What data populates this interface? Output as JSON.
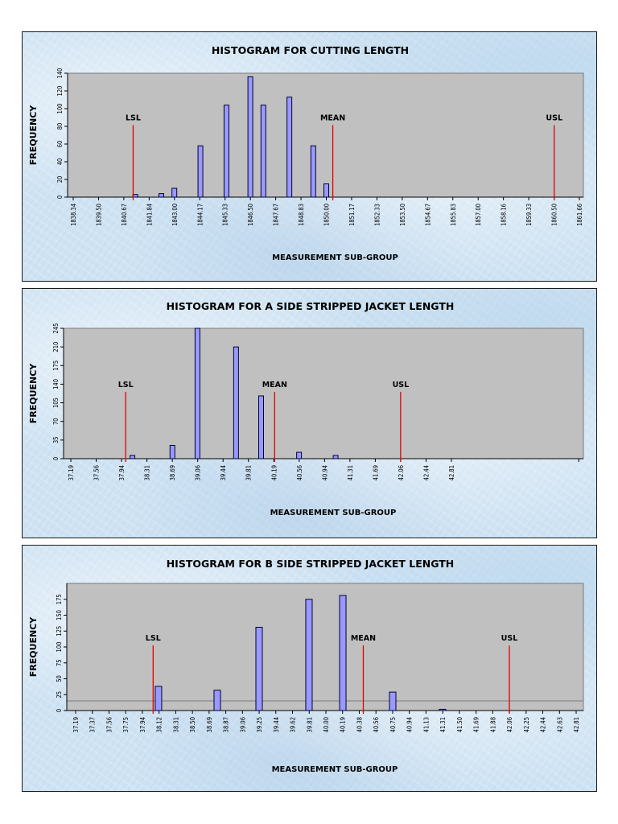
{
  "chart_data": [
    {
      "type": "bar",
      "title": "HISTOGRAM FOR CUTTING LENGTH",
      "xlabel": "MEASUREMENT SUB-GROUP",
      "ylabel": "FREQUENCY",
      "ylim": [
        0,
        140
      ],
      "yticks": [
        0,
        20,
        40,
        60,
        80,
        100,
        120,
        140
      ],
      "xlim": [
        1838.34,
        1861.66
      ],
      "x_ticks": [
        "1838.34",
        "1839.50",
        "1840.67",
        "1841.84",
        "1843.00",
        "1844.17",
        "1845.33",
        "1846.50",
        "1847.67",
        "1848.83",
        "1850.00",
        "1851.17",
        "1852.33",
        "1853.50",
        "1854.67",
        "1855.83",
        "1857.00",
        "1858.16",
        "1859.33",
        "1860.50",
        "1861.66"
      ],
      "grid": false,
      "bars": [
        {
          "x": 1841.2,
          "value": 3
        },
        {
          "x": 1842.4,
          "value": 4
        },
        {
          "x": 1843.0,
          "value": 10
        },
        {
          "x": 1844.2,
          "value": 58
        },
        {
          "x": 1845.4,
          "value": 104
        },
        {
          "x": 1846.5,
          "value": 136
        },
        {
          "x": 1847.1,
          "value": 104
        },
        {
          "x": 1848.3,
          "value": 113
        },
        {
          "x": 1849.4,
          "value": 58
        },
        {
          "x": 1850.0,
          "value": 15
        }
      ],
      "markers": [
        {
          "label": "LSL",
          "x": 1841.1
        },
        {
          "label": "MEAN",
          "x": 1850.3
        },
        {
          "label": "USL",
          "x": 1860.5
        }
      ]
    },
    {
      "type": "bar",
      "title": "HISTOGRAM FOR A SIDE STRIPPED JACKET LENGTH",
      "xlabel": "MEASUREMENT SUB-GROUP",
      "ylabel": "FREQUENCY",
      "ylim": [
        0,
        245
      ],
      "yticks": [
        0,
        35,
        70,
        105,
        140,
        175,
        210,
        245
      ],
      "xlim": [
        37.19,
        42.81
      ],
      "x_ticks": [
        "37.19",
        "37.56",
        "37.94",
        "38.31",
        "38.69",
        "39.06",
        "39.44",
        "39.81",
        "40.19",
        "40.56",
        "40.94",
        "41.31",
        "41.69",
        "42.06",
        "42.44",
        "42.81"
      ],
      "x_axis_end": 44.69,
      "grid": false,
      "bars": [
        {
          "x": 38.1,
          "value": 6
        },
        {
          "x": 38.69,
          "value": 25
        },
        {
          "x": 39.06,
          "value": 245
        },
        {
          "x": 39.63,
          "value": 210
        },
        {
          "x": 40.0,
          "value": 118
        },
        {
          "x": 40.56,
          "value": 12
        },
        {
          "x": 41.1,
          "value": 6
        }
      ],
      "markers": [
        {
          "label": "LSL",
          "x": 38.0
        },
        {
          "label": "MEAN",
          "x": 40.2
        },
        {
          "label": "USL",
          "x": 42.06
        }
      ]
    },
    {
      "type": "bar",
      "title": "HISTOGRAM FOR B SIDE STRIPPED JACKET LENGTH",
      "xlabel": "MEASUREMENT SUB-GROUP",
      "ylabel": "FREQUENCY",
      "ylim": [
        0,
        200
      ],
      "yticks": [
        0,
        25,
        50,
        75,
        100,
        125,
        150,
        175
      ],
      "xlim": [
        37.19,
        42.81
      ],
      "x_ticks": [
        "37.19",
        "37.37",
        "37.56",
        "37.75",
        "37.94",
        "38.12",
        "38.31",
        "38.50",
        "38.69",
        "38.87",
        "39.06",
        "39.25",
        "39.44",
        "39.62",
        "39.81",
        "40.00",
        "40.19",
        "40.38",
        "40.56",
        "40.75",
        "40.94",
        "41.13",
        "41.31",
        "41.50",
        "41.69",
        "41.88",
        "42.06",
        "42.25",
        "42.44",
        "42.63",
        "42.81"
      ],
      "grid": false,
      "bars": [
        {
          "x": 38.12,
          "value": 38
        },
        {
          "x": 38.78,
          "value": 32
        },
        {
          "x": 39.25,
          "value": 131
        },
        {
          "x": 39.81,
          "value": 175
        },
        {
          "x": 40.19,
          "value": 181
        },
        {
          "x": 40.75,
          "value": 29
        },
        {
          "x": 41.31,
          "value": 2
        }
      ],
      "markers": [
        {
          "label": "LSL",
          "x": 38.06
        },
        {
          "label": "MEAN",
          "x": 40.42
        },
        {
          "label": "USL",
          "x": 42.06
        }
      ]
    }
  ]
}
